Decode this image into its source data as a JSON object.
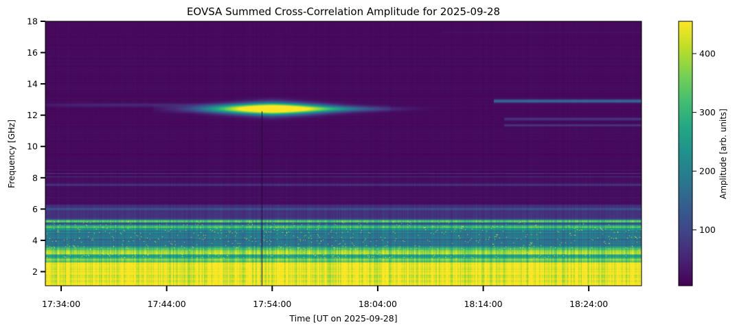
{
  "chart_data": {
    "type": "heatmap",
    "title": "EOVSA Summed Cross-Correlation Amplitude for 2025-09-28",
    "xlabel": "Time [UT on 2025-09-28]",
    "ylabel": "Frequency [GHz]",
    "colorbar_label": "Amplitude [arb. units]",
    "colormap": "viridis",
    "x_start": "17:32:00",
    "x_end": "18:30:00",
    "xlim": [
      "17:32:30",
      "18:29:00"
    ],
    "ylim": [
      1.1,
      18.0
    ],
    "clim": [
      5,
      455
    ],
    "x_ticks": [
      "17:34:00",
      "17:44:00",
      "17:54:00",
      "18:04:00",
      "18:14:00",
      "18:24:00"
    ],
    "y_ticks": [
      2,
      4,
      6,
      8,
      10,
      12,
      14,
      16,
      18
    ],
    "colorbar_ticks": [
      100,
      200,
      300,
      400
    ],
    "grid": false,
    "features": [
      {
        "frequency_ghz": 12.4,
        "time_start": "17:45:00",
        "time_end": "18:00:00",
        "peak_time": "17:54:00",
        "amplitude": 455
      },
      {
        "frequency_ghz": 12.9,
        "time_start": "18:15:00",
        "time_end": "18:29:00",
        "amplitude": 220
      },
      {
        "frequency_ghz": 11.7,
        "time_start": "18:16:00",
        "time_end": "18:29:00",
        "amplitude": 100
      },
      {
        "frequency_ghz": 5.2,
        "time_start": "17:32:30",
        "time_end": "18:29:00",
        "amplitude": 380
      },
      {
        "frequency_ghz": 1.6,
        "time_start": "17:32:30",
        "time_end": "18:29:00",
        "amplitude": 455
      }
    ]
  }
}
